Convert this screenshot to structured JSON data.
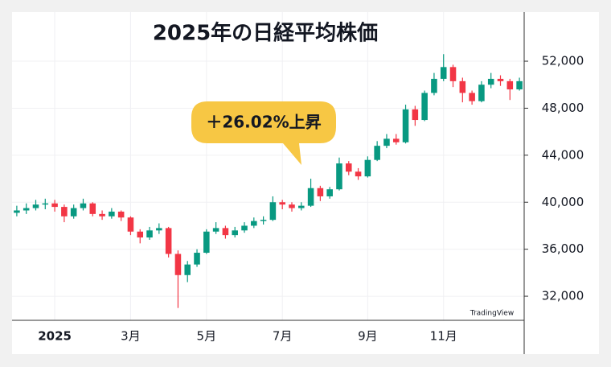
{
  "chart_data": {
    "type": "candlestick",
    "title": "2025年の日経平均株価",
    "annotation": "＋26.02%上昇",
    "watermark": "TradingView",
    "categories": [
      null,
      null,
      null,
      null,
      "2025",
      null,
      null,
      null,
      null,
      null,
      null,
      null,
      "3月",
      null,
      null,
      null,
      null,
      null,
      null,
      null,
      "5月",
      null,
      null,
      null,
      null,
      null,
      null,
      null,
      "7月",
      null,
      null,
      null,
      null,
      null,
      null,
      null,
      null,
      "9月",
      null,
      null,
      null,
      null,
      null,
      null,
      null,
      "11月",
      null,
      null,
      null,
      null,
      null,
      null,
      null,
      null
    ],
    "open": [
      39100,
      39300,
      39500,
      39800,
      39900,
      39600,
      38800,
      39500,
      39900,
      39000,
      38800,
      39200,
      38700,
      37500,
      37000,
      37600,
      37800,
      35600,
      33800,
      34700,
      35700,
      37500,
      37800,
      37200,
      37600,
      38000,
      38400,
      38500,
      40000,
      39800,
      39500,
      39700,
      41200,
      40500,
      41100,
      43300,
      42600,
      42200,
      43600,
      44800,
      45400,
      45100,
      47900,
      47000,
      49300,
      50500,
      51500,
      50300,
      49300,
      48600,
      50000,
      50500,
      50300,
      49600
    ],
    "high": [
      39700,
      39900,
      40200,
      40300,
      40200,
      39800,
      39800,
      40300,
      40000,
      39300,
      39500,
      39300,
      38800,
      37700,
      37900,
      38200,
      37900,
      35900,
      35000,
      36000,
      37700,
      38300,
      38000,
      37900,
      38300,
      38700,
      38800,
      40500,
      40200,
      40000,
      40000,
      42000,
      41400,
      41300,
      43800,
      43500,
      42900,
      43900,
      45200,
      45800,
      45800,
      48300,
      48200,
      49500,
      51000,
      52600,
      51700,
      50600,
      49500,
      50300,
      51000,
      50800,
      50500,
      50600
    ],
    "low": [
      38800,
      39000,
      39300,
      39400,
      39200,
      38300,
      38600,
      39300,
      38800,
      38500,
      38600,
      38400,
      37200,
      36500,
      36800,
      37300,
      35300,
      31000,
      33200,
      34500,
      35600,
      37300,
      36900,
      37000,
      37400,
      37800,
      38100,
      38400,
      39400,
      39200,
      39300,
      39600,
      40100,
      40300,
      41000,
      42300,
      41900,
      42100,
      43500,
      44600,
      44900,
      45000,
      46500,
      46900,
      49100,
      50300,
      49800,
      48500,
      48300,
      48500,
      49700,
      49900,
      48700,
      49500
    ],
    "close": [
      39300,
      39500,
      39800,
      39900,
      39600,
      38800,
      39500,
      39900,
      39000,
      38800,
      39200,
      38700,
      37500,
      37000,
      37600,
      37800,
      35600,
      33800,
      34700,
      35700,
      37500,
      37800,
      37200,
      37600,
      38000,
      38400,
      38500,
      40000,
      39800,
      39500,
      39700,
      41200,
      40500,
      41100,
      43300,
      42600,
      42200,
      43600,
      44800,
      45400,
      45100,
      47900,
      47000,
      49300,
      50500,
      51500,
      50300,
      49300,
      48600,
      50000,
      50500,
      50300,
      49600,
      50300
    ],
    "up_color": "#089981",
    "down_color": "#f23645",
    "ylim": [
      29950,
      56180
    ],
    "yticks": [
      {
        "value": 32000,
        "label": "32,000"
      },
      {
        "value": 36000,
        "label": "36,000"
      },
      {
        "value": 40000,
        "label": "40,000"
      },
      {
        "value": 44000,
        "label": "44,000"
      },
      {
        "value": 48000,
        "label": "48,000"
      },
      {
        "value": 52000,
        "label": "52,000"
      }
    ],
    "grid": true
  }
}
